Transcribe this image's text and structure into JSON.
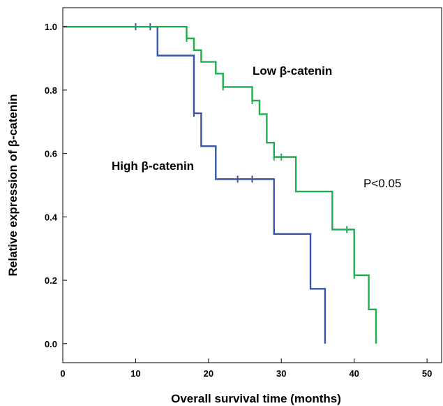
{
  "chart_data": {
    "type": "line",
    "step": true,
    "title": "",
    "xlabel": "Overall survival time (months)",
    "ylabel": "Relative expression of β-catenin",
    "xlim": [
      0,
      52
    ],
    "ylim": [
      -0.06,
      1.06
    ],
    "xticks": [
      0,
      10,
      20,
      30,
      40,
      50
    ],
    "yticks": [
      0.0,
      0.2,
      0.4,
      0.6,
      0.8,
      1.0
    ],
    "xtick_labels": [
      "0",
      "10",
      "20",
      "30",
      "40",
      "50"
    ],
    "ytick_labels": [
      "0.0",
      "0.2",
      "0.4",
      "0.6",
      "0.8",
      "1.0"
    ],
    "grid": false,
    "annotation": "P<0.05",
    "series": [
      {
        "name": "High β-catenin",
        "color": "#3a55a6",
        "steps": [
          [
            0,
            1.0
          ],
          [
            13,
            0.909
          ],
          [
            18,
            0.727
          ],
          [
            19,
            0.623
          ],
          [
            21,
            0.519
          ],
          [
            29,
            0.346
          ],
          [
            34,
            0.173
          ],
          [
            36,
            0.0
          ]
        ],
        "censored": [
          [
            10,
            1.0
          ],
          [
            12,
            1.0
          ],
          [
            18,
            0.727
          ],
          [
            24,
            0.519
          ],
          [
            26,
            0.519
          ]
        ]
      },
      {
        "name": "Low β-catenin",
        "color": "#1fae4f",
        "steps": [
          [
            0,
            1.0
          ],
          [
            17,
            0.963
          ],
          [
            18,
            0.926
          ],
          [
            19,
            0.889
          ],
          [
            21,
            0.852
          ],
          [
            22,
            0.81
          ],
          [
            26,
            0.767
          ],
          [
            27,
            0.724
          ],
          [
            28,
            0.634
          ],
          [
            29,
            0.589
          ],
          [
            32,
            0.48
          ],
          [
            37,
            0.36
          ],
          [
            40,
            0.216
          ],
          [
            42,
            0.108
          ],
          [
            43,
            0.0
          ]
        ],
        "censored": [
          [
            17,
            0.963
          ],
          [
            22,
            0.81
          ],
          [
            26,
            0.767
          ],
          [
            29,
            0.589
          ],
          [
            30,
            0.589
          ],
          [
            39,
            0.36
          ],
          [
            40,
            0.216
          ]
        ]
      }
    ]
  }
}
